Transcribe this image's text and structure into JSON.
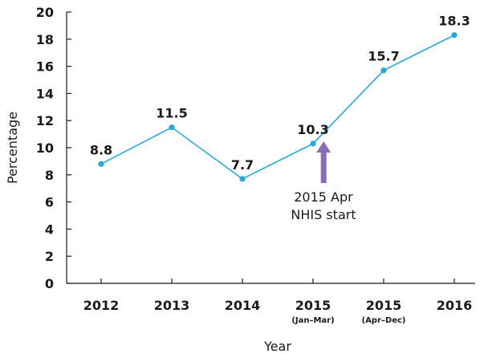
{
  "chart_data": {
    "type": "line",
    "categories": [
      "2012",
      "2013",
      "2014",
      "2015",
      "2015",
      "2016"
    ],
    "category_sublabels": [
      "",
      "",
      "",
      "(Jan–Mar)",
      "(Apr–Dec)",
      ""
    ],
    "values": [
      8.8,
      11.5,
      7.7,
      10.3,
      15.7,
      18.3
    ],
    "data_labels": [
      "8.8",
      "11.5",
      "7.7",
      "10.3",
      "15.7",
      "18.3"
    ],
    "xlabel": "Year",
    "ylabel": "Percentage",
    "ylim": [
      0,
      20
    ],
    "yticks": [
      0,
      2,
      4,
      6,
      8,
      10,
      12,
      14,
      16,
      18,
      20
    ],
    "grid": false,
    "annotation": {
      "lines": [
        "2015 Apr",
        "NHIS start"
      ],
      "category_index": 3.15,
      "arrow_color": "#8b6bb5"
    },
    "line_color": "#29a8d8",
    "marker_color": "#29a8d8"
  }
}
